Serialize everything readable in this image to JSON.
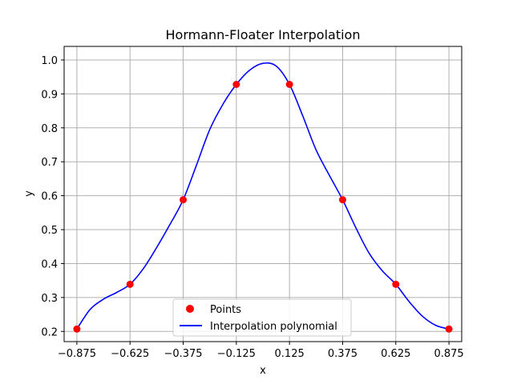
{
  "chart_data": {
    "type": "line",
    "title": "Hormann-Floater Interpolation",
    "xlabel": "x",
    "ylabel": "y",
    "xlim": [
      -0.935,
      0.935
    ],
    "ylim": [
      0.17,
      1.04
    ],
    "grid": true,
    "legend_position": "lower-center",
    "x_ticks": [
      {
        "value": -0.875,
        "label": "−0.875"
      },
      {
        "value": -0.625,
        "label": "−0.625"
      },
      {
        "value": -0.375,
        "label": "−0.375"
      },
      {
        "value": -0.125,
        "label": "−0.125"
      },
      {
        "value": 0.125,
        "label": "0.125"
      },
      {
        "value": 0.375,
        "label": "0.375"
      },
      {
        "value": 0.625,
        "label": "0.625"
      },
      {
        "value": 0.875,
        "label": "0.875"
      }
    ],
    "y_ticks": [
      {
        "value": 0.2,
        "label": "0.2"
      },
      {
        "value": 0.3,
        "label": "0.3"
      },
      {
        "value": 0.4,
        "label": "0.4"
      },
      {
        "value": 0.5,
        "label": "0.5"
      },
      {
        "value": 0.6,
        "label": "0.6"
      },
      {
        "value": 0.7,
        "label": "0.7"
      },
      {
        "value": 0.8,
        "label": "0.8"
      },
      {
        "value": 0.9,
        "label": "0.9"
      },
      {
        "value": 1.0,
        "label": "1.0"
      }
    ],
    "series": [
      {
        "name": "Points",
        "kind": "scatter",
        "color": "#ff0000",
        "x": [
          -0.875,
          -0.625,
          -0.375,
          -0.125,
          0.125,
          0.375,
          0.625,
          0.875
        ],
        "y": [
          0.207,
          0.339,
          0.588,
          0.928,
          0.928,
          0.588,
          0.339,
          0.207
        ]
      },
      {
        "name": "Interpolation polynomial",
        "kind": "line",
        "color": "#0000ff",
        "x": [
          -0.875,
          -0.8125,
          -0.75,
          -0.6875,
          -0.625,
          -0.5625,
          -0.5,
          -0.4375,
          -0.375,
          -0.3125,
          -0.25,
          -0.1875,
          -0.125,
          -0.0625,
          0.0,
          0.0625,
          0.125,
          0.1875,
          0.25,
          0.3125,
          0.375,
          0.4375,
          0.5,
          0.5625,
          0.625,
          0.6875,
          0.75,
          0.8125,
          0.875
        ],
        "y": [
          0.207,
          0.265,
          0.295,
          0.315,
          0.339,
          0.385,
          0.447,
          0.515,
          0.588,
          0.69,
          0.795,
          0.87,
          0.928,
          0.97,
          0.99,
          0.982,
          0.928,
          0.835,
          0.735,
          0.66,
          0.588,
          0.505,
          0.43,
          0.378,
          0.339,
          0.288,
          0.245,
          0.218,
          0.207
        ]
      }
    ]
  }
}
